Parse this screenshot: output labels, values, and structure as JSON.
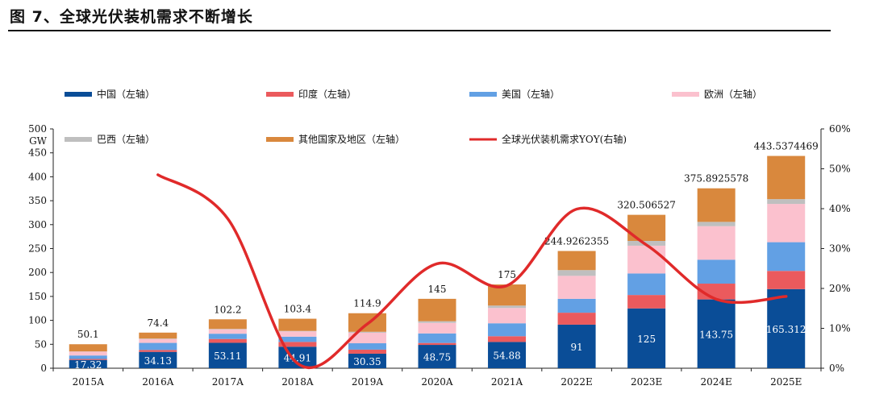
{
  "page": {
    "title": "图 7、全球光伏装机需求不断增长"
  },
  "chart_data": {
    "type": "bar",
    "stacked": true,
    "categories": [
      "2015A",
      "2016A",
      "2017A",
      "2018A",
      "2019A",
      "2020A",
      "2021A",
      "2022E",
      "2023E",
      "2024E",
      "2025E"
    ],
    "series": [
      {
        "name": "中国（左轴）",
        "color": "#0A4D97",
        "values": [
          17.32,
          34.13,
          53.11,
          44.91,
          30.35,
          48.75,
          54.88,
          91,
          125,
          143.75,
          165.312
        ]
      },
      {
        "name": "印度（左轴）",
        "color": "#EB5A5D",
        "values": [
          2.0,
          4.0,
          8.0,
          10.0,
          8.5,
          4.0,
          12.0,
          25.0,
          28.0,
          33.0,
          38.0
        ]
      },
      {
        "name": "美国（左轴）",
        "color": "#62A0E4",
        "values": [
          7.3,
          14.8,
          11.0,
          11.0,
          13.3,
          20.0,
          27.0,
          29.0,
          45.0,
          50.0,
          60.0
        ]
      },
      {
        "name": "欧洲（左轴）",
        "color": "#FBC1CE",
        "values": [
          8.0,
          8.0,
          9.0,
          11.0,
          22.0,
          22.0,
          32.0,
          48.0,
          58.0,
          70.0,
          80.0
        ]
      },
      {
        "name": "巴西（左轴）",
        "color": "#BFBFBF",
        "values": [
          0.5,
          1.0,
          1.0,
          1.0,
          2.0,
          3.5,
          5.0,
          12.0,
          10.0,
          9.0,
          10.0
        ]
      },
      {
        "name": "其他国家及地区（左轴）",
        "color": "#D9883D",
        "values": [
          14.98,
          12.47,
          20.09,
          25.49,
          38.75,
          46.75,
          44.12,
          39.93,
          54.51,
          70.14,
          90.23
        ]
      }
    ],
    "totals": [
      "50.1",
      "74.4",
      "102.2",
      "103.4",
      "114.9",
      "145",
      "175",
      "244.9262355",
      "320.506527",
      "375.8925578",
      "443.5374469"
    ],
    "inner_labels": [
      "17.32",
      "34.13",
      "53.11",
      "44.91",
      "30.35",
      "48.75",
      "54.88",
      "91",
      "125",
      "143.75",
      "165.312"
    ],
    "line": {
      "name": "全球光伏装机需求YOY(右轴)",
      "color": "#E02A2A",
      "values": [
        null,
        0.485,
        0.375,
        0.012,
        0.111,
        0.262,
        0.207,
        0.399,
        0.309,
        0.173,
        0.18
      ]
    },
    "y_left": {
      "unit": "GW",
      "ylim": [
        0,
        500
      ],
      "ticks": [
        "0",
        "50",
        "100",
        "150",
        "200",
        "250",
        "300",
        "350",
        "400",
        "450",
        "500"
      ]
    },
    "y_right": {
      "ylim": [
        0,
        0.6
      ],
      "ticks": [
        "0%",
        "10%",
        "20%",
        "30%",
        "40%",
        "50%",
        "60%"
      ]
    },
    "legend_position": "top",
    "grid": false
  }
}
